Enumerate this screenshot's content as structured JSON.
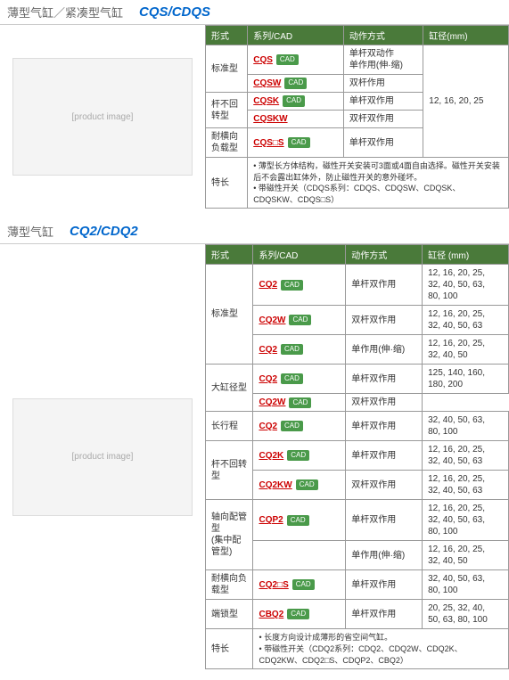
{
  "sections": [
    {
      "title": "薄型气缸／紧凑型气缸",
      "model": "CQS/CDQS",
      "headers": [
        "形式",
        "系列/CAD",
        "动作方式",
        "缸径(mm)"
      ],
      "rows": [
        {
          "type": "标准型",
          "type_rowspan": 2,
          "series": "CQS",
          "cad": true,
          "action": "单杆双动作\n单作用(伸·缩)",
          "bore": "12, 16, 20, 25",
          "bore_rowspan": 5
        },
        {
          "series": "CQSW",
          "cad": true,
          "action": "双杆作用"
        },
        {
          "type": "杆不回转型",
          "type_rowspan": 2,
          "series": "CQSK",
          "cad": true,
          "action": "单杆双作用"
        },
        {
          "series": "CQSKW",
          "action": "双杆双作用"
        },
        {
          "type": "耐横向负载型",
          "series": "CQS□S",
          "cad": true,
          "action": "单杆双作用"
        }
      ],
      "feature_label": "特长",
      "features": [
        "薄型长方体结构，磁性开关安装可3面或4面自由选择。磁性开关安装后不会露出缸体外，防止磁性开关的意外碰坏。",
        "带磁性开关（CDQS系列：CDQS、CDQSW、CDQSK、CDQSKW、CDQS□S）"
      ]
    },
    {
      "title": "薄型气缸",
      "model": "CQ2/CDQ2",
      "headers": [
        "形式",
        "系列/CAD",
        "动作方式",
        "缸径 (mm)"
      ],
      "rows": [
        {
          "type": "标准型",
          "type_rowspan": 3,
          "series": "CQ2",
          "cad": true,
          "action": "单杆双作用",
          "bore": "12, 16, 20, 25,\n32, 40, 50, 63,\n80, 100"
        },
        {
          "series": "CQ2W",
          "cad": true,
          "action": "双杆双作用",
          "bore": "12, 16, 20, 25,\n32, 40, 50, 63"
        },
        {
          "series": "CQ2",
          "cad": true,
          "action": "单作用(伸·缩)",
          "bore": "12, 16, 20, 25,\n32, 40, 50"
        },
        {
          "type": "大缸径型",
          "type_rowspan": 2,
          "series": "CQ2",
          "cad": true,
          "action": "单杆双作用",
          "bore": "125, 140, 160,\n180, 200"
        },
        {
          "series": "CQ2W",
          "cad": true,
          "action": "双杆双作用"
        },
        {
          "type": "长行程",
          "series": "CQ2",
          "cad": true,
          "action": "单杆双作用",
          "bore": "32, 40, 50, 63,\n80, 100"
        },
        {
          "type": "杆不回转型",
          "type_rowspan": 2,
          "series": "CQ2K",
          "cad": true,
          "action": "单杆双作用",
          "bore": "12, 16, 20, 25,\n32, 40, 50, 63"
        },
        {
          "series": "CQ2KW",
          "cad": true,
          "action": "双杆双作用",
          "bore": "12, 16, 20, 25,\n32, 40, 50, 63"
        },
        {
          "type": "轴向配管型\n(集中配管型)",
          "type_rowspan": 2,
          "series": "CQP2",
          "cad": true,
          "action": "单杆双作用",
          "bore": "12, 16, 20, 25,\n32, 40, 50, 63,\n80, 100"
        },
        {
          "action": "单作用(伸·缩)",
          "bore": "12, 16, 20, 25,\n32, 40, 50"
        },
        {
          "type": "耐横向负载型",
          "series": "CQ2□S",
          "cad": true,
          "action": "单杆双作用",
          "bore": "32, 40, 50, 63,\n80, 100"
        },
        {
          "type": "端锁型",
          "series": "CBQ2",
          "cad": true,
          "action": "单杆双作用",
          "bore": "20, 25, 32, 40,\n50, 63, 80, 100"
        }
      ],
      "feature_label": "特长",
      "features": [
        "长度方向设计成薄形的省空间气缸。",
        "带磁性开关（CDQ2系列：CDQ2、CDQ2W、CDQ2K、CDQ2KW、CDQ2□S、CDQP2、CBQ2）"
      ]
    }
  ],
  "cad_label": "CAD",
  "img_ph": "[product image]"
}
